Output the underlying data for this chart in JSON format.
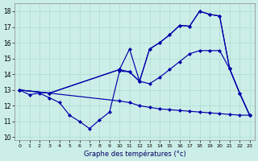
{
  "xlabel": "Graphe des températures (°c)",
  "bg_color": "#cceee8",
  "grid_color": "#aaddcc",
  "line_color": "#0000aa",
  "xlim": [
    -0.5,
    23.5
  ],
  "ylim": [
    9.8,
    18.5
  ],
  "yticks": [
    10,
    11,
    12,
    13,
    14,
    15,
    16,
    17,
    18
  ],
  "xticks": [
    0,
    1,
    2,
    3,
    4,
    5,
    6,
    7,
    8,
    9,
    10,
    11,
    12,
    13,
    14,
    15,
    16,
    17,
    18,
    19,
    20,
    21,
    22,
    23
  ],
  "curves": [
    {
      "x": [
        0,
        1,
        2,
        3,
        4,
        5,
        6,
        7,
        8,
        9,
        10,
        11,
        12,
        13,
        14,
        15,
        16,
        17,
        18,
        19,
        20,
        21,
        22,
        23
      ],
      "y": [
        13.0,
        12.7,
        12.8,
        12.5,
        12.2,
        11.4,
        11.0,
        10.55,
        11.1,
        11.6,
        14.2,
        14.15,
        13.55,
        15.6,
        16.0,
        16.5,
        17.1,
        17.05,
        18.0,
        17.8,
        17.7,
        14.35,
        12.8,
        11.4
      ]
    },
    {
      "x": [
        0,
        3,
        10,
        11,
        12,
        13,
        14,
        15,
        16,
        17,
        18,
        19,
        20,
        21,
        22,
        23
      ],
      "y": [
        13.0,
        12.8,
        14.3,
        15.6,
        13.55,
        15.6,
        16.0,
        16.5,
        17.1,
        17.05,
        18.0,
        17.8,
        17.7,
        14.35,
        12.8,
        11.4
      ]
    },
    {
      "x": [
        0,
        3,
        10,
        11,
        12,
        13,
        14,
        15,
        16,
        17,
        18,
        19,
        20,
        21,
        22,
        23
      ],
      "y": [
        13.0,
        12.8,
        14.3,
        14.15,
        13.55,
        13.4,
        13.8,
        14.3,
        14.8,
        15.3,
        15.5,
        15.5,
        15.5,
        14.35,
        12.8,
        11.4
      ]
    },
    {
      "x": [
        0,
        3,
        10,
        11,
        12,
        13,
        14,
        15,
        16,
        17,
        18,
        19,
        20,
        21,
        22,
        23
      ],
      "y": [
        13.0,
        12.8,
        12.3,
        12.2,
        12.0,
        11.9,
        11.8,
        11.75,
        11.7,
        11.65,
        11.6,
        11.55,
        11.5,
        11.45,
        11.4,
        11.4
      ]
    }
  ]
}
